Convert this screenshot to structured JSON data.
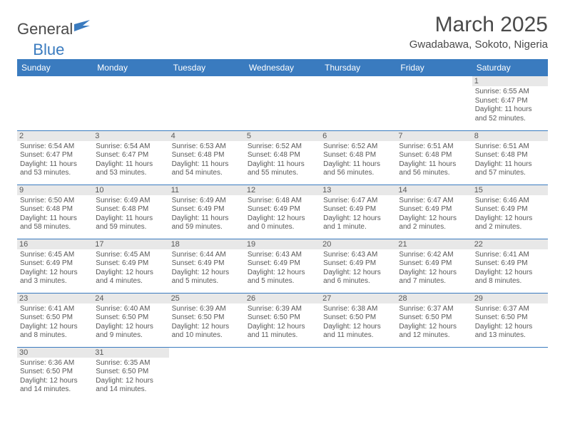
{
  "logo": {
    "left": "General",
    "right": "Blue"
  },
  "header": {
    "title": "March 2025",
    "location": "Gwadabawa, Sokoto, Nigeria"
  },
  "colors": {
    "header_bg": "#3a7bbf",
    "header_text": "#ffffff",
    "daynum_bg": "#e8e8e8",
    "text": "#595959",
    "cell_border": "#3a7bbf"
  },
  "weekdays": [
    "Sunday",
    "Monday",
    "Tuesday",
    "Wednesday",
    "Thursday",
    "Friday",
    "Saturday"
  ],
  "weeks": [
    [
      null,
      null,
      null,
      null,
      null,
      null,
      {
        "n": "1",
        "sr": "6:55 AM",
        "ss": "6:47 PM",
        "dl": "11 hours and 52 minutes."
      }
    ],
    [
      {
        "n": "2",
        "sr": "6:54 AM",
        "ss": "6:47 PM",
        "dl": "11 hours and 53 minutes."
      },
      {
        "n": "3",
        "sr": "6:54 AM",
        "ss": "6:47 PM",
        "dl": "11 hours and 53 minutes."
      },
      {
        "n": "4",
        "sr": "6:53 AM",
        "ss": "6:48 PM",
        "dl": "11 hours and 54 minutes."
      },
      {
        "n": "5",
        "sr": "6:52 AM",
        "ss": "6:48 PM",
        "dl": "11 hours and 55 minutes."
      },
      {
        "n": "6",
        "sr": "6:52 AM",
        "ss": "6:48 PM",
        "dl": "11 hours and 56 minutes."
      },
      {
        "n": "7",
        "sr": "6:51 AM",
        "ss": "6:48 PM",
        "dl": "11 hours and 56 minutes."
      },
      {
        "n": "8",
        "sr": "6:51 AM",
        "ss": "6:48 PM",
        "dl": "11 hours and 57 minutes."
      }
    ],
    [
      {
        "n": "9",
        "sr": "6:50 AM",
        "ss": "6:48 PM",
        "dl": "11 hours and 58 minutes."
      },
      {
        "n": "10",
        "sr": "6:49 AM",
        "ss": "6:48 PM",
        "dl": "11 hours and 59 minutes."
      },
      {
        "n": "11",
        "sr": "6:49 AM",
        "ss": "6:49 PM",
        "dl": "11 hours and 59 minutes."
      },
      {
        "n": "12",
        "sr": "6:48 AM",
        "ss": "6:49 PM",
        "dl": "12 hours and 0 minutes."
      },
      {
        "n": "13",
        "sr": "6:47 AM",
        "ss": "6:49 PM",
        "dl": "12 hours and 1 minute."
      },
      {
        "n": "14",
        "sr": "6:47 AM",
        "ss": "6:49 PM",
        "dl": "12 hours and 2 minutes."
      },
      {
        "n": "15",
        "sr": "6:46 AM",
        "ss": "6:49 PM",
        "dl": "12 hours and 2 minutes."
      }
    ],
    [
      {
        "n": "16",
        "sr": "6:45 AM",
        "ss": "6:49 PM",
        "dl": "12 hours and 3 minutes."
      },
      {
        "n": "17",
        "sr": "6:45 AM",
        "ss": "6:49 PM",
        "dl": "12 hours and 4 minutes."
      },
      {
        "n": "18",
        "sr": "6:44 AM",
        "ss": "6:49 PM",
        "dl": "12 hours and 5 minutes."
      },
      {
        "n": "19",
        "sr": "6:43 AM",
        "ss": "6:49 PM",
        "dl": "12 hours and 5 minutes."
      },
      {
        "n": "20",
        "sr": "6:43 AM",
        "ss": "6:49 PM",
        "dl": "12 hours and 6 minutes."
      },
      {
        "n": "21",
        "sr": "6:42 AM",
        "ss": "6:49 PM",
        "dl": "12 hours and 7 minutes."
      },
      {
        "n": "22",
        "sr": "6:41 AM",
        "ss": "6:49 PM",
        "dl": "12 hours and 8 minutes."
      }
    ],
    [
      {
        "n": "23",
        "sr": "6:41 AM",
        "ss": "6:50 PM",
        "dl": "12 hours and 8 minutes."
      },
      {
        "n": "24",
        "sr": "6:40 AM",
        "ss": "6:50 PM",
        "dl": "12 hours and 9 minutes."
      },
      {
        "n": "25",
        "sr": "6:39 AM",
        "ss": "6:50 PM",
        "dl": "12 hours and 10 minutes."
      },
      {
        "n": "26",
        "sr": "6:39 AM",
        "ss": "6:50 PM",
        "dl": "12 hours and 11 minutes."
      },
      {
        "n": "27",
        "sr": "6:38 AM",
        "ss": "6:50 PM",
        "dl": "12 hours and 11 minutes."
      },
      {
        "n": "28",
        "sr": "6:37 AM",
        "ss": "6:50 PM",
        "dl": "12 hours and 12 minutes."
      },
      {
        "n": "29",
        "sr": "6:37 AM",
        "ss": "6:50 PM",
        "dl": "12 hours and 13 minutes."
      }
    ],
    [
      {
        "n": "30",
        "sr": "6:36 AM",
        "ss": "6:50 PM",
        "dl": "12 hours and 14 minutes."
      },
      {
        "n": "31",
        "sr": "6:35 AM",
        "ss": "6:50 PM",
        "dl": "12 hours and 14 minutes."
      },
      null,
      null,
      null,
      null,
      null
    ]
  ],
  "labels": {
    "sunrise": "Sunrise:",
    "sunset": "Sunset:",
    "daylight": "Daylight:"
  }
}
